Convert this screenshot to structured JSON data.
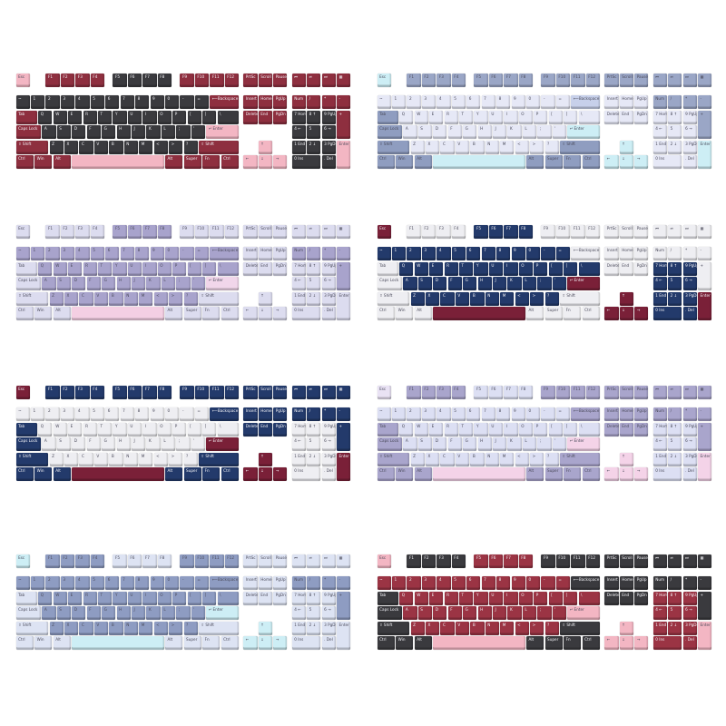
{
  "legends": [
    "Esc",
    "F1",
    "F2",
    "F3",
    "F4",
    "F5",
    "F6",
    "F7",
    "F8",
    "F9",
    "F10",
    "F11",
    "F12",
    "PrtSc",
    "Scroll",
    "Pause",
    "⏮",
    "⏯",
    "⏭",
    "▦",
    "~",
    "1",
    "2",
    "3",
    "4",
    "5",
    "6",
    "7",
    "8",
    "9",
    "0",
    "-",
    "=",
    "⟵Backspace",
    "Insert",
    "Home",
    "PgUp",
    "Num",
    "/",
    "*",
    "-",
    "Tab",
    "Q",
    "W",
    "E",
    "R",
    "T",
    "Y",
    "U",
    "I",
    "O",
    "P",
    "[",
    "]",
    "\\",
    "Delete",
    "End",
    "PgDn",
    "7 Home",
    "8 ↑",
    "9 PgUp",
    "+",
    "Caps Lock",
    "A",
    "S",
    "D",
    "F",
    "G",
    "H",
    "J",
    "K",
    "L",
    ";",
    "'",
    "↵ Enter",
    "4 ←",
    "5",
    "6 →",
    "⇧ Shift",
    "Z",
    "X",
    "C",
    "V",
    "B",
    "N",
    "M",
    "<",
    ">",
    "?",
    "⇧ Shift",
    "↑",
    "1 End",
    "2 ↓",
    "3 PgDn",
    "Enter ↵",
    "Ctrl",
    "Win",
    "Alt",
    "",
    "Alt",
    "Super",
    "Fn",
    "Ctrl",
    "←",
    "↓",
    "→",
    "0 Ins",
    ". Del"
  ],
  "keyboards": [
    {
      "name": "keyboard-black-red-pink",
      "colors": {
        "esc": "#f3b6c3",
        "fA": "#8e2f3f",
        "fB": "#3a3a3e",
        "fC": "#8e2f3f",
        "sys": "#8e2f3f",
        "media": "#8e2f3f",
        "alpha": "#3a3a3e",
        "mod": "#8e2f3f",
        "bksp": "#8e2f3f",
        "enter": "#f3b6c3",
        "space": "#f3b6c3",
        "arrow": "#f3b6c3",
        "nav": "#8e2f3f",
        "numop": "#8e2f3f",
        "numnum": "#3a3a3e",
        "numplus": "#8e2f3f",
        "numenter": "#f3b6c3"
      }
    },
    {
      "name": "keyboard-white-blue-grey",
      "colors": {
        "esc": "#cdeef5",
        "fA": "#9aa6c6",
        "fB": "#9aa6c6",
        "fC": "#9aa6c6",
        "sys": "#9aa6c6",
        "media": "#9aa6c6",
        "alpha": "#e6e8f6",
        "mod": "#8f9dc0",
        "bksp": "#c7d0ea",
        "enter": "#cdeef5",
        "space": "#cdeef5",
        "arrow": "#cdeef5",
        "nav": "#e6e8f6",
        "numop": "#9aa6c6",
        "numnum": "#e6e8f6",
        "numplus": "#9aa6c6",
        "numenter": "#cdeef5"
      }
    },
    {
      "name": "keyboard-lavender",
      "colors": {
        "esc": "#dcdcef",
        "fA": "#dcdcef",
        "fB": "#a8a3cc",
        "fC": "#dcdcef",
        "sys": "#dcdcef",
        "media": "#dcdcef",
        "alpha": "#a8a3cc",
        "mod": "#dcdcef",
        "bksp": "#a8a3cc",
        "enter": "#f1d6ea",
        "space": "#f4cfe3",
        "arrow": "#dcdcef",
        "nav": "#dcdcef",
        "numop": "#a8a3cc",
        "numnum": "#dcdcef",
        "numplus": "#a8a3cc",
        "numenter": "#dcdcef"
      }
    },
    {
      "name": "keyboard-navy-white-burgundy",
      "colors": {
        "esc": "#7a2038",
        "fA": "#eeeef2",
        "fB": "#233a6b",
        "fC": "#eeeef2",
        "sys": "#eeeef2",
        "media": "#eeeef2",
        "alpha": "#233a6b",
        "mod": "#eeeef2",
        "bksp": "#eeeef2",
        "enter": "#7a2038",
        "space": "#7a2038",
        "arrow": "#7a2038",
        "nav": "#eeeef2",
        "numop": "#eeeef2",
        "numnum": "#233a6b",
        "numplus": "#eeeef2",
        "numenter": "#7a2038"
      }
    },
    {
      "name": "keyboard-white-navy-burgundy",
      "colors": {
        "esc": "#7a2038",
        "fA": "#233a6b",
        "fB": "#233a6b",
        "fC": "#233a6b",
        "sys": "#233a6b",
        "media": "#233a6b",
        "alpha": "#eeeef2",
        "mod": "#233a6b",
        "bksp": "#233a6b",
        "enter": "#7a2038",
        "space": "#7a2038",
        "arrow": "#7a2038",
        "nav": "#233a6b",
        "numop": "#233a6b",
        "numnum": "#eeeef2",
        "numplus": "#233a6b",
        "numenter": "#7a2038"
      }
    },
    {
      "name": "keyboard-light-lavender-pink",
      "colors": {
        "esc": "#e9e2f4",
        "fA": "#a9a5cc",
        "fB": "#dcdff3",
        "fC": "#a9a5cc",
        "sys": "#a9a5cc",
        "media": "#a9a5cc",
        "alpha": "#dcdff3",
        "mod": "#a9a5cc",
        "bksp": "#a9a5cc",
        "enter": "#f4d3e8",
        "space": "#f4d3e8",
        "arrow": "#f4d3e8",
        "nav": "#a9a5cc",
        "numop": "#a9a5cc",
        "numnum": "#dcdff3",
        "numplus": "#a9a5cc",
        "numenter": "#f4d3e8"
      }
    },
    {
      "name": "keyboard-blue-grey-cyan",
      "colors": {
        "esc": "#cdeef5",
        "fA": "#8e9cc2",
        "fB": "#dde3f3",
        "fC": "#8e9cc2",
        "sys": "#dde3f3",
        "media": "#dde3f3",
        "alpha": "#8e9cc2",
        "mod": "#dde3f3",
        "bksp": "#8e9cc2",
        "enter": "#cdeef5",
        "space": "#cdeef5",
        "arrow": "#cdeef5",
        "nav": "#dde3f3",
        "numop": "#8e9cc2",
        "numnum": "#dde3f3",
        "numplus": "#8e9cc2",
        "numenter": "#dde3f3"
      }
    },
    {
      "name": "keyboard-red-black-pink",
      "colors": {
        "esc": "#f3b6c3",
        "fA": "#3a3a3e",
        "fB": "#9b3444",
        "fC": "#3a3a3e",
        "sys": "#3a3a3e",
        "media": "#3a3a3e",
        "alpha": "#9b3444",
        "mod": "#3a3a3e",
        "bksp": "#3a3a3e",
        "enter": "#f3b6c3",
        "space": "#f3b6c3",
        "arrow": "#f3b6c3",
        "nav": "#3a3a3e",
        "numop": "#3a3a3e",
        "numnum": "#9b3444",
        "numplus": "#3a3a3e",
        "numenter": "#f3b6c3"
      }
    }
  ]
}
